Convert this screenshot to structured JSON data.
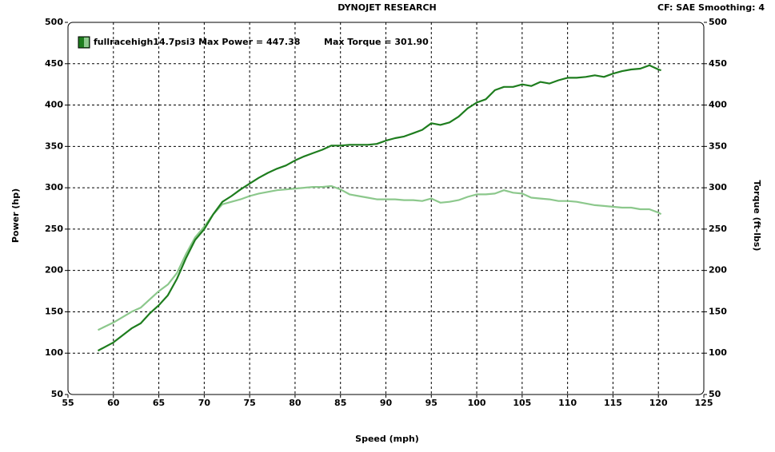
{
  "chart_data": {
    "type": "line",
    "title": "DYNOJET RESEARCH",
    "subtitle": "CF: SAE  Smoothing: 4",
    "legend": [
      "fullracehigh14.7psi3 Max Power = 447.38",
      "Max Torque = 301.90"
    ],
    "xlabel": "Speed (mph)",
    "ylabel": "Power (hp)",
    "y2label": "Torque (ft-lbs)",
    "x": [
      58.3,
      60,
      62,
      63,
      64,
      65,
      66,
      67,
      68,
      69,
      70,
      71,
      72,
      73,
      74,
      75,
      76,
      77,
      78,
      79,
      80,
      81,
      82,
      83,
      84,
      85,
      86,
      87,
      88,
      89,
      90,
      91,
      92,
      93,
      94,
      95,
      96,
      97,
      98,
      99,
      100,
      101,
      102,
      103,
      104,
      105,
      106,
      107,
      108,
      109,
      110,
      111,
      112,
      113,
      114,
      115,
      116,
      117,
      118,
      119,
      120,
      120.3
    ],
    "series": [
      {
        "color": "#1e7d1e",
        "values": [
          103,
          113,
          130,
          136,
          148,
          158,
          170,
          190,
          215,
          237,
          250,
          268,
          283,
          290,
          298,
          305,
          312,
          318,
          323,
          327,
          333,
          338,
          342,
          346,
          351,
          351,
          352,
          352,
          352,
          353,
          357,
          360,
          362,
          366,
          370,
          378,
          376,
          379,
          386,
          396,
          403,
          407,
          418,
          422,
          422,
          425,
          423,
          428,
          426,
          430,
          433,
          433,
          434,
          436,
          434,
          438,
          441,
          443,
          444,
          448,
          443,
          442
        ]
      },
      {
        "color": "#8cc88c",
        "axis": "y2",
        "values": [
          128,
          137,
          150,
          155,
          165,
          175,
          183,
          197,
          220,
          240,
          253,
          268,
          280,
          283,
          286,
          290,
          293,
          295,
          297,
          298,
          299,
          300,
          301,
          301,
          302,
          298,
          292,
          290,
          288,
          286,
          286,
          286,
          285,
          285,
          284,
          287,
          282,
          283,
          285,
          289,
          292,
          292,
          293,
          297,
          294,
          293,
          288,
          287,
          286,
          284,
          284,
          283,
          281,
          279,
          278,
          277,
          276,
          276,
          274,
          274,
          270,
          268
        ]
      }
    ],
    "xlim": [
      55,
      125
    ],
    "xticks": [
      55,
      60,
      65,
      70,
      75,
      80,
      85,
      90,
      95,
      100,
      105,
      110,
      115,
      120,
      125
    ],
    "ylim": [
      50,
      500
    ],
    "yticks": [
      50,
      100,
      150,
      200,
      250,
      300,
      350,
      400,
      450,
      500
    ],
    "y2lim": [
      50,
      500
    ],
    "y2ticks": [
      50,
      100,
      150,
      200,
      250,
      300,
      350,
      400,
      450,
      500
    ],
    "grid": true
  }
}
